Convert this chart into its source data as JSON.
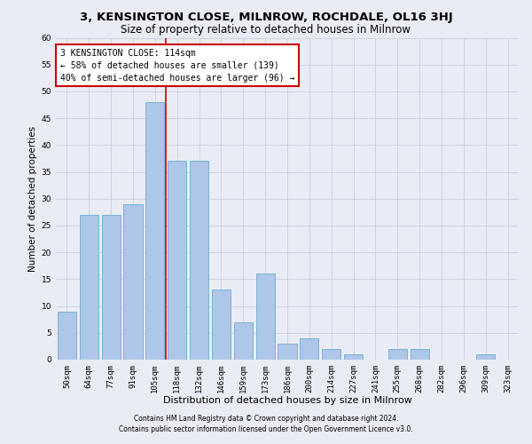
{
  "title": "3, KENSINGTON CLOSE, MILNROW, ROCHDALE, OL16 3HJ",
  "subtitle": "Size of property relative to detached houses in Milnrow",
  "xlabel": "Distribution of detached houses by size in Milnrow",
  "ylabel": "Number of detached properties",
  "categories": [
    "50sqm",
    "64sqm",
    "77sqm",
    "91sqm",
    "105sqm",
    "118sqm",
    "132sqm",
    "146sqm",
    "159sqm",
    "173sqm",
    "186sqm",
    "200sqm",
    "214sqm",
    "227sqm",
    "241sqm",
    "255sqm",
    "268sqm",
    "282sqm",
    "296sqm",
    "309sqm",
    "323sqm"
  ],
  "values": [
    9,
    27,
    27,
    29,
    48,
    37,
    37,
    13,
    7,
    16,
    3,
    4,
    2,
    1,
    0,
    2,
    2,
    0,
    0,
    1,
    0
  ],
  "bar_color": "#aec6e8",
  "bar_edge_color": "#6baed6",
  "vline_x_index": 4.5,
  "vline_color": "#cc0000",
  "annotation_box_text": "3 KENSINGTON CLOSE: 114sqm\n← 58% of detached houses are smaller (139)\n40% of semi-detached houses are larger (96) →",
  "annotation_box_color": "#cc0000",
  "annotation_box_fill": "#ffffff",
  "ylim": [
    0,
    60
  ],
  "yticks": [
    0,
    5,
    10,
    15,
    20,
    25,
    30,
    35,
    40,
    45,
    50,
    55,
    60
  ],
  "grid_color": "#ccccdd",
  "background_color": "#eaecf5",
  "footer_line1": "Contains HM Land Registry data © Crown copyright and database right 2024.",
  "footer_line2": "Contains public sector information licensed under the Open Government Licence v3.0.",
  "title_fontsize": 9.5,
  "subtitle_fontsize": 8.5,
  "xlabel_fontsize": 8,
  "ylabel_fontsize": 7.5,
  "tick_fontsize": 6.5,
  "annotation_fontsize": 7,
  "footer_fontsize": 5.5
}
